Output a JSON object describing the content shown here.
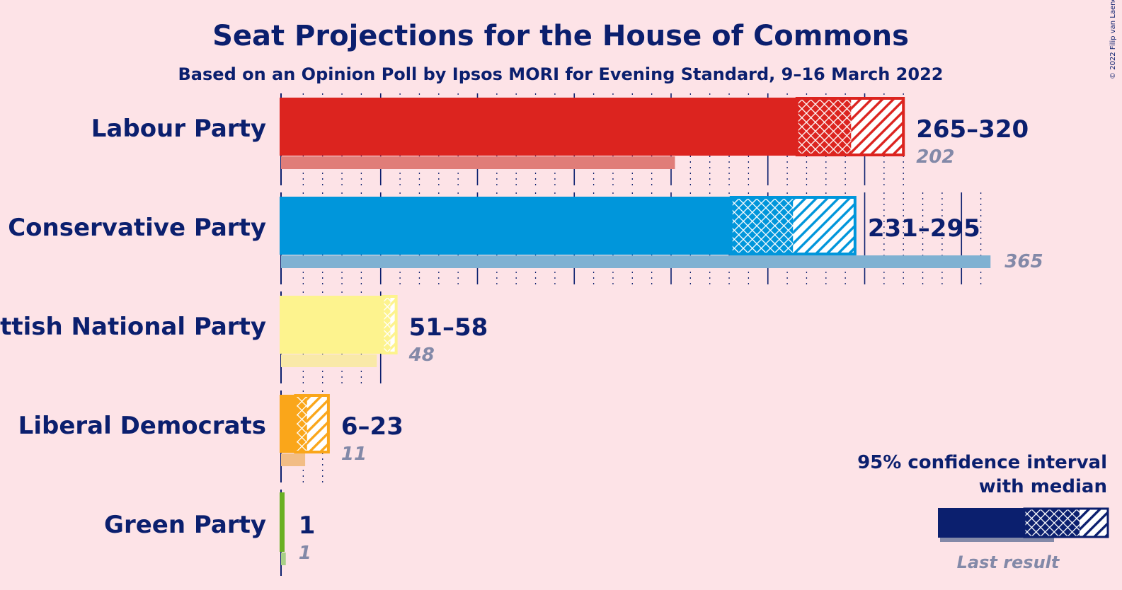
{
  "header": {
    "title": "Seat Projections for the House of Commons",
    "subtitle": "Based on an Opinion Poll by Ipsos MORI for Evening Standard, 9–16 March 2022"
  },
  "credit": "© 2022 Filip van Laenen",
  "legend": {
    "line1": "95% confidence interval",
    "line2": "with median",
    "last_result": "Last result",
    "color": "#0b1f6e"
  },
  "colors": {
    "background": "#fde3e7",
    "text": "#0b1f6e",
    "last_result_text": "#8389a8"
  },
  "chart_data": {
    "type": "bar",
    "orientation": "horizontal",
    "title": "Seat Projections for the House of Commons",
    "subtitle": "Based on an Opinion Poll by Ipsos MORI for Evening Standard, 9–16 March 2022",
    "xlim": [
      0,
      365
    ],
    "grid": true,
    "major_tick_step": 50,
    "minor_tick_step": 10,
    "parties": [
      {
        "name": "Labour Party",
        "color": "#dc241f",
        "last_color": "#e07d79",
        "low": 265,
        "median": 293,
        "high": 320,
        "range_label": "265–320",
        "last": 202,
        "last_label": "202"
      },
      {
        "name": "Conservative Party",
        "color": "#0096db",
        "last_color": "#7fb1d2",
        "low": 231,
        "median": 263,
        "high": 295,
        "range_label": "231–295",
        "last": 365,
        "last_label": "365"
      },
      {
        "name": "Scottish National Party",
        "color": "#fdf38e",
        "last_color": "#f9e9a8",
        "low": 51,
        "median": 55,
        "high": 58,
        "range_label": "51–58",
        "last": 48,
        "last_label": "48"
      },
      {
        "name": "Liberal Democrats",
        "color": "#faa61a",
        "last_color": "#f2bd85",
        "low": 6,
        "median": 12,
        "high": 23,
        "range_label": "6–23",
        "last": 11,
        "last_label": "11"
      },
      {
        "name": "Green Party",
        "color": "#6ab023",
        "last_color": "#a7cf86",
        "low": 1,
        "median": 1,
        "high": 1,
        "range_label": "1",
        "last": 1,
        "last_label": "1"
      }
    ]
  }
}
